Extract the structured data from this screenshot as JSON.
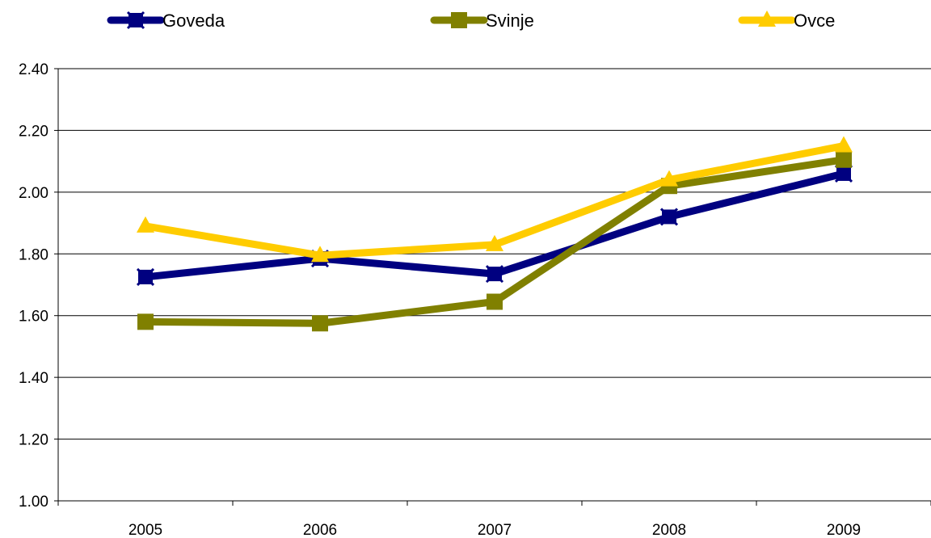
{
  "chart_data": {
    "type": "line",
    "categories": [
      "2005",
      "2006",
      "2007",
      "2008",
      "2009"
    ],
    "series": [
      {
        "name": "Goveda",
        "values": [
          1.725,
          1.785,
          1.735,
          1.92,
          2.06
        ],
        "color": "#000080",
        "marker": "x-square"
      },
      {
        "name": "Svinje",
        "values": [
          1.58,
          1.575,
          1.645,
          2.02,
          2.105
        ],
        "color": "#808000",
        "marker": "square"
      },
      {
        "name": "Ovce",
        "values": [
          1.89,
          1.795,
          1.83,
          2.04,
          2.15
        ],
        "color": "#FFCC00",
        "marker": "triangle"
      }
    ],
    "yticks": [
      "1.00",
      "1.20",
      "1.40",
      "1.60",
      "1.80",
      "2.00",
      "2.20",
      "2.40"
    ],
    "ylim": [
      1.0,
      2.4
    ],
    "grid": true,
    "legend": "top"
  }
}
